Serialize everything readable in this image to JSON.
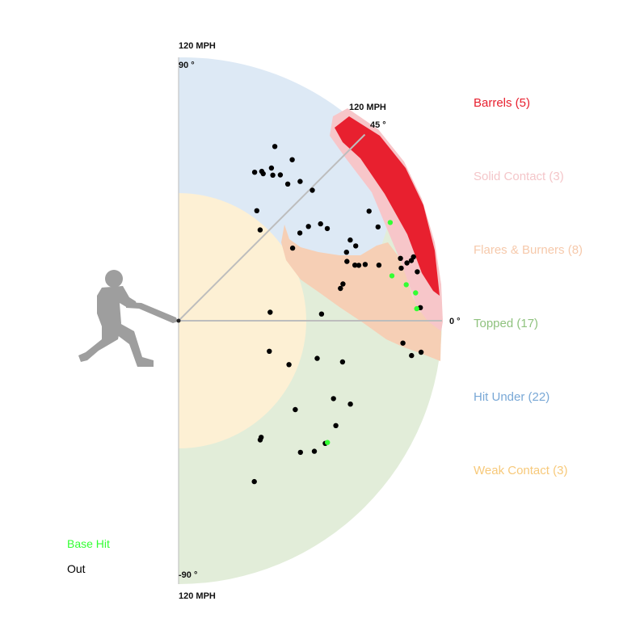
{
  "chart_data": {
    "type": "scatter",
    "coordinate_system": "polar",
    "radial_axis": {
      "label": "120 MPH",
      "max": 120
    },
    "angle_ticks": [
      {
        "angle": 90,
        "label": "90 °"
      },
      {
        "angle": 45,
        "label": "45 °"
      },
      {
        "angle": 0,
        "label": "0 °"
      },
      {
        "angle": -90,
        "label": "-90 °"
      }
    ],
    "radial_labels": [
      {
        "angle": 90,
        "label": "120 MPH"
      },
      {
        "angle": 45,
        "label": "120 MPH"
      },
      {
        "angle": -90,
        "label": "120 MPH"
      }
    ],
    "zones": [
      {
        "key": "barrels",
        "label": "Barrels (5)",
        "color": "#e8202f"
      },
      {
        "key": "solid",
        "label": "Solid Contact (3)",
        "color": "#f4c6c9"
      },
      {
        "key": "flares",
        "label": "Flares & Burners (8)",
        "color": "#f6c9ab"
      },
      {
        "key": "topped",
        "label": "Topped (17)",
        "color": "#8fc27e"
      },
      {
        "key": "under",
        "label": "Hit Under (22)",
        "color": "#79a8d6"
      },
      {
        "key": "weak",
        "label": "Weak Contact (3)",
        "color": "#f7c97a"
      }
    ],
    "outcomes": [
      {
        "key": "hit",
        "label": "Base Hit",
        "color": "#33ff33"
      },
      {
        "key": "out",
        "label": "Out",
        "color": "#000000"
      }
    ],
    "points": [
      {
        "ev": 89.8,
        "la": 54.8,
        "result": "out"
      },
      {
        "ev": 77.3,
        "la": 60.1,
        "result": "out"
      },
      {
        "ev": 77.9,
        "la": 60.9,
        "result": "out"
      },
      {
        "ev": 81.4,
        "la": 58.7,
        "result": "out"
      },
      {
        "ev": 79.0,
        "la": 57.1,
        "result": "out"
      },
      {
        "ev": 90.7,
        "la": 61.1,
        "result": "out"
      },
      {
        "ev": 76.0,
        "la": 62.9,
        "result": "out"
      },
      {
        "ev": 81.0,
        "la": 55.1,
        "result": "out"
      },
      {
        "ev": 79.7,
        "la": 51.4,
        "result": "out"
      },
      {
        "ev": 84.2,
        "la": 48.9,
        "result": "out"
      },
      {
        "ev": 85.1,
        "la": 44.3,
        "result": "out"
      },
      {
        "ev": 61.5,
        "la": 54.6,
        "result": "out"
      },
      {
        "ev": 55.6,
        "la": 48.1,
        "result": "out"
      },
      {
        "ev": 68.2,
        "la": 35.9,
        "result": "out"
      },
      {
        "ev": 73.1,
        "la": 36.0,
        "result": "out"
      },
      {
        "ev": 78.3,
        "la": 34.3,
        "result": "out"
      },
      {
        "ev": 79.7,
        "la": 31.8,
        "result": "out"
      },
      {
        "ev": 61.6,
        "la": 32.5,
        "result": "out"
      },
      {
        "ev": 86.4,
        "la": 25.2,
        "result": "out"
      },
      {
        "ev": 81.3,
        "la": 19.4,
        "result": "out"
      },
      {
        "ev": 82.6,
        "la": 22.2,
        "result": "out"
      },
      {
        "ev": 87.6,
        "la": 22.9,
        "result": "out"
      },
      {
        "ev": 84.2,
        "la": 17.5,
        "result": "out"
      },
      {
        "ev": 85.9,
        "la": 17.1,
        "result": "out"
      },
      {
        "ev": 88.8,
        "la": 16.8,
        "result": "out"
      },
      {
        "ev": 94.7,
        "la": 15.5,
        "result": "out"
      },
      {
        "ev": 75.2,
        "la": 11.3,
        "result": "out"
      },
      {
        "ev": 76.7,
        "la": 12.6,
        "result": "out"
      },
      {
        "ev": 100.1,
        "la": 29.9,
        "result": "out"
      },
      {
        "ev": 100.4,
        "la": 25.2,
        "result": "out"
      },
      {
        "ev": 105.0,
        "la": 15.7,
        "result": "out"
      },
      {
        "ev": 104.2,
        "la": 13.3,
        "result": "out"
      },
      {
        "ev": 107.3,
        "la": 14.2,
        "result": "out"
      },
      {
        "ev": 109.5,
        "la": 14.5,
        "result": "out"
      },
      {
        "ev": 110.9,
        "la": 15.2,
        "result": "out"
      },
      {
        "ev": 111.0,
        "la": 11.6,
        "result": "out"
      },
      {
        "ev": 110.3,
        "la": 3.1,
        "result": "out"
      },
      {
        "ev": 106.3,
        "la": 24.9,
        "result": "hit"
      },
      {
        "ev": 99.3,
        "la": 11.9,
        "result": "hit"
      },
      {
        "ev": 105.0,
        "la": 9.0,
        "result": "hit"
      },
      {
        "ev": 108.7,
        "la": 6.7,
        "result": "hit"
      },
      {
        "ev": 108.6,
        "la": 2.9,
        "result": "hit"
      },
      {
        "ev": 41.9,
        "la": 5.3,
        "result": "out"
      },
      {
        "ev": 65.2,
        "la": 2.7,
        "result": "out"
      },
      {
        "ev": 43.6,
        "la": -18.6,
        "result": "out"
      },
      {
        "ev": 54.1,
        "la": -21.7,
        "result": "out"
      },
      {
        "ev": 65.4,
        "la": -15.2,
        "result": "out"
      },
      {
        "ev": 77.0,
        "la": -14.1,
        "result": "out"
      },
      {
        "ev": 102.7,
        "la": -5.7,
        "result": "out"
      },
      {
        "ev": 107.3,
        "la": -8.5,
        "result": "out"
      },
      {
        "ev": 111.4,
        "la": -7.4,
        "result": "out"
      },
      {
        "ev": 79.0,
        "la": -26.7,
        "result": "out"
      },
      {
        "ev": 87.0,
        "la": -25.9,
        "result": "out"
      },
      {
        "ev": 66.8,
        "la": -37.3,
        "result": "out"
      },
      {
        "ev": 86.1,
        "la": -33.7,
        "result": "out"
      },
      {
        "ev": 65.1,
        "la": -54.7,
        "result": "out"
      },
      {
        "ev": 65.8,
        "la": -55.6,
        "result": "out"
      },
      {
        "ev": 87.1,
        "la": -39.9,
        "result": "out"
      },
      {
        "ev": 87.6,
        "la": -39.3,
        "result": "hit"
      },
      {
        "ev": 85.8,
        "la": -43.9,
        "result": "out"
      },
      {
        "ev": 81.7,
        "la": -47.2,
        "result": "out"
      },
      {
        "ev": 81.0,
        "la": -64.8,
        "result": "out"
      }
    ]
  }
}
